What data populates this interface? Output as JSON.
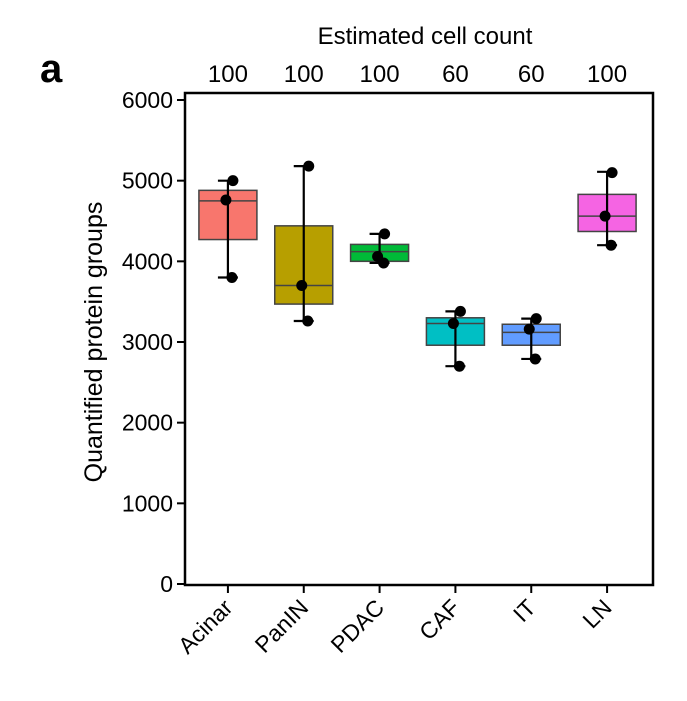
{
  "chart_data": {
    "type": "box",
    "panel_label": "a",
    "top_axis_title": "Estimated cell count",
    "ylabel": "Quantified protein groups",
    "xlabel": "",
    "ylim": [
      0,
      6000
    ],
    "y_ticks": [
      0,
      1000,
      2000,
      3000,
      4000,
      5000,
      6000
    ],
    "grid": false,
    "categories": [
      "Acinar",
      "PanIN",
      "PDAC",
      "CAF",
      "IT",
      "LN"
    ],
    "cell_counts": [
      "100",
      "100",
      "100",
      "60",
      "60",
      "100"
    ],
    "boxes": [
      {
        "category": "Acinar",
        "color": "#F8766D",
        "whisker_low": 3800,
        "q1": 4270,
        "median": 4750,
        "q3": 4880,
        "whisker_high": 5000,
        "points": [
          5000,
          4760,
          3800
        ]
      },
      {
        "category": "PanIN",
        "color": "#B79F00",
        "whisker_low": 3260,
        "q1": 3470,
        "median": 3700,
        "q3": 4440,
        "whisker_high": 5180,
        "points": [
          5180,
          3700,
          3260
        ]
      },
      {
        "category": "PDAC",
        "color": "#00BA38",
        "whisker_low": 3980,
        "q1": 4000,
        "median": 4120,
        "q3": 4210,
        "whisker_high": 4340,
        "points": [
          4340,
          4060,
          3980
        ]
      },
      {
        "category": "CAF",
        "color": "#00BFC4",
        "whisker_low": 2700,
        "q1": 2960,
        "median": 3230,
        "q3": 3300,
        "whisker_high": 3380,
        "points": [
          3380,
          3230,
          2700
        ]
      },
      {
        "category": "IT",
        "color": "#619CFF",
        "whisker_low": 2790,
        "q1": 2960,
        "median": 3120,
        "q3": 3220,
        "whisker_high": 3290,
        "points": [
          3290,
          3160,
          2790
        ]
      },
      {
        "category": "LN",
        "color": "#F564E3",
        "whisker_low": 4200,
        "q1": 4370,
        "median": 4560,
        "q3": 4830,
        "whisker_high": 5110,
        "points": [
          5100,
          4560,
          4200
        ]
      }
    ]
  }
}
